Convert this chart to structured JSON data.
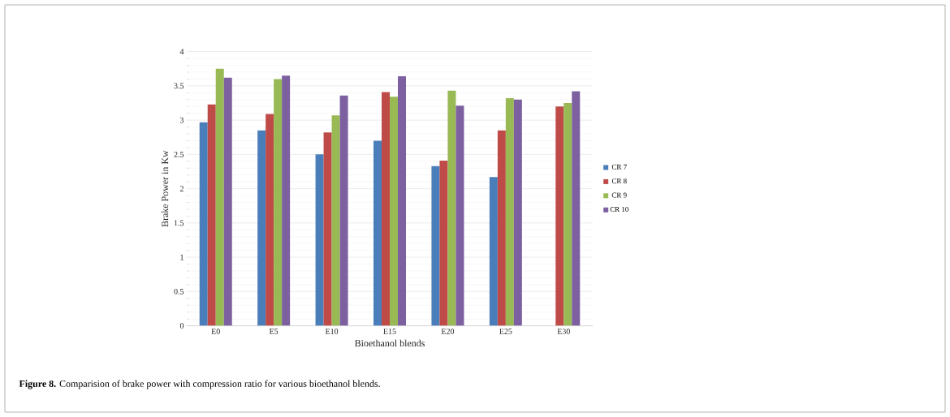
{
  "chart_data": {
    "type": "bar",
    "xlabel": "Bioethanol blends",
    "ylabel": "Brake Power in Kw",
    "categories": [
      "E0",
      "E5",
      "E10",
      "E15",
      "E20",
      "E25",
      "E30"
    ],
    "series": [
      {
        "name": "CR 7",
        "color": "#4a7ebb",
        "values": [
          2.97,
          2.85,
          2.5,
          2.7,
          2.33,
          2.17,
          null
        ]
      },
      {
        "name": "CR 8",
        "color": "#be4b48",
        "values": [
          3.23,
          3.09,
          2.82,
          3.41,
          2.41,
          2.85,
          3.2
        ]
      },
      {
        "name": "CR 9",
        "color": "#98b954",
        "values": [
          3.75,
          3.6,
          3.07,
          3.34,
          3.43,
          3.32,
          3.25
        ]
      },
      {
        "name": "CR 10",
        "color": "#7d60a0",
        "values": [
          3.62,
          3.65,
          3.36,
          3.64,
          3.21,
          3.3,
          3.42
        ]
      }
    ],
    "ylim": [
      0,
      4
    ],
    "yticks": [
      0,
      0.5,
      1,
      1.5,
      2,
      2.5,
      3,
      3.5,
      4
    ],
    "grid": "y",
    "legend": "right",
    "annotations": [
      "**Figure 8.** Comparision of brake power with compression ratio for various bioethanol blends."
    ]
  }
}
